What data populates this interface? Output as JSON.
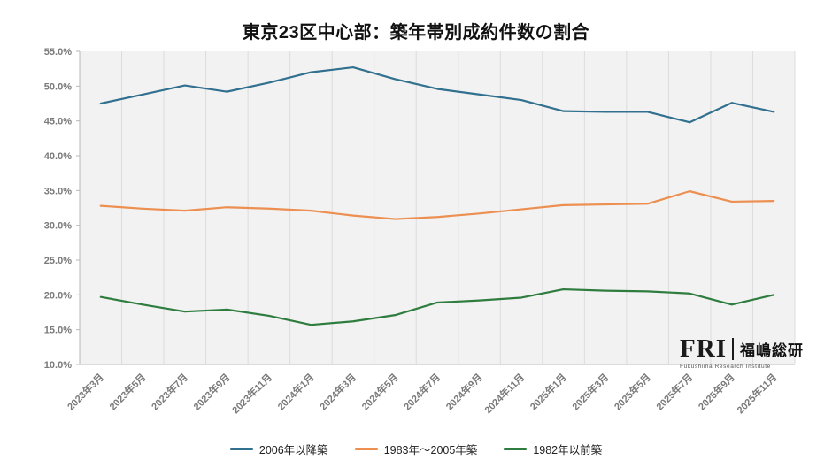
{
  "chart": {
    "title": "東京23区中心部：築年帯別成約件数の割合"
  },
  "chart_data": {
    "type": "line",
    "title": "東京23区中心部：築年帯別成約件数の割合",
    "x": [
      "2023年3月",
      "2023年5月",
      "2023年7月",
      "2023年9月",
      "2023年11月",
      "2024年1月",
      "2024年3月",
      "2024年5月",
      "2024年7月",
      "2024年9月",
      "2024年11月",
      "2025年1月",
      "2025年3月",
      "2025年5月",
      "2025年7月",
      "2025年9月",
      "2025年11月"
    ],
    "series": [
      {
        "name": "2006年以降築",
        "color": "#31708e",
        "values": [
          47.5,
          48.8,
          50.1,
          49.2,
          50.5,
          52.0,
          52.7,
          51.0,
          49.6,
          48.8,
          48.0,
          46.4,
          46.3,
          46.3,
          44.8,
          47.6,
          46.3
        ]
      },
      {
        "name": "1983年〜2005年築",
        "color": "#ec8f50",
        "values": [
          32.8,
          32.4,
          32.1,
          32.6,
          32.4,
          32.1,
          31.4,
          30.9,
          31.2,
          31.7,
          32.3,
          32.9,
          33.0,
          33.1,
          34.9,
          33.4,
          33.5
        ]
      },
      {
        "name": "1982年以前築",
        "color": "#2e7d3f",
        "values": [
          19.7,
          18.6,
          17.6,
          17.9,
          17.0,
          15.7,
          16.2,
          17.1,
          18.9,
          19.2,
          19.6,
          20.8,
          20.6,
          20.5,
          20.2,
          18.6,
          20.0
        ]
      }
    ],
    "ylim": [
      10,
      55
    ],
    "ytick_step": 5,
    "ytick_format": "0.0%",
    "grid": "vertical",
    "legend_position": "bottom",
    "plot_bg": "#f2f2f2",
    "gridline_color": "#dcdcdc",
    "axis_color": "#b7b7b7"
  },
  "logo": {
    "acronym": "FRI",
    "name_jp": "福嶋総研",
    "name_en": "Fukushima Research Institute"
  }
}
